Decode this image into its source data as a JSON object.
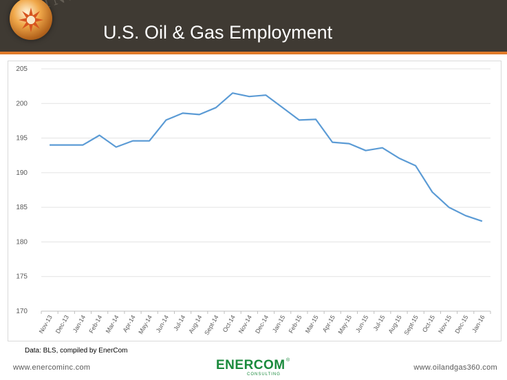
{
  "header": {
    "title": "U.S. Oil & Gas Employment",
    "watermark": "INDUSTRY",
    "logo_icon": "enercom-sun-orb-icon"
  },
  "colors": {
    "header_bg": "#3f3a33",
    "accent": "#e07b2a",
    "series_line": "#5b9bd5",
    "brand_green": "#1a8a3c"
  },
  "chart_data": {
    "type": "line",
    "title": "",
    "xlabel": "",
    "ylabel": "",
    "ylim": [
      170,
      205
    ],
    "yticks": [
      170,
      175,
      180,
      185,
      190,
      195,
      200,
      205
    ],
    "grid": true,
    "legend": "none",
    "categories": [
      "Nov-13",
      "Dec-13",
      "Jan-14",
      "Feb-14",
      "Mar-14",
      "Apr-14",
      "May-14",
      "Jun-14",
      "Jul-14",
      "Aug-14",
      "Sept-14",
      "Oct-14",
      "Nov-14",
      "Dec-14",
      "Jan-15",
      "Feb-15",
      "Mar-15",
      "Apr-15",
      "May-15",
      "Jun-15",
      "Jul-15",
      "Aug-15",
      "Sept-15",
      "Oct-15",
      "Nov-15",
      "Dec-15",
      "Jan-16"
    ],
    "series": [
      {
        "values": [
          194.0,
          194.0,
          194.0,
          195.4,
          193.7,
          194.6,
          194.6,
          197.6,
          198.6,
          198.4,
          199.4,
          201.5,
          201.0,
          201.2,
          199.4,
          197.6,
          197.7,
          194.4,
          194.2,
          193.2,
          193.6,
          192.1,
          191.0,
          187.2,
          185.0,
          183.8,
          183.0
        ]
      }
    ]
  },
  "footer": {
    "source": "Data: BLS, compiled by EnerCom",
    "left_url": "www.enercominc.com",
    "right_url": "www.oilandgas360.com",
    "brand": "ENERCOM",
    "brand_mark": "®",
    "brand_sub": "CONSULTING",
    "brand_icon": "enercom-sun-icon"
  }
}
